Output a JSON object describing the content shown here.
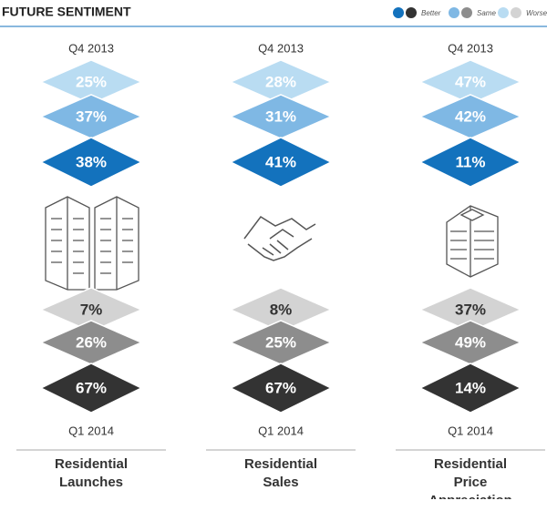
{
  "header": {
    "title": "FUTURE SENTIMENT"
  },
  "legend": {
    "items": [
      "Better",
      "Same",
      "Worse"
    ]
  },
  "panels": [
    {
      "label": "Residential Launches",
      "top_period": "Q4 2013",
      "top_values": [
        "25%",
        "37%",
        "38%"
      ],
      "bottom_period": "Q1 2014",
      "bottom_values": [
        "7%",
        "26%",
        "67%"
      ]
    },
    {
      "label": "Residential Sales",
      "top_period": "Q4 2013",
      "top_values": [
        "28%",
        "31%",
        "41%"
      ],
      "bottom_period": "Q1 2014",
      "bottom_values": [
        "8%",
        "25%",
        "67%"
      ]
    },
    {
      "label": "Residential Price Appreciation",
      "top_period": "Q4 2013",
      "top_values": [
        "47%",
        "42%",
        "11%"
      ],
      "bottom_period": "Q1 2014",
      "bottom_values": [
        "37%",
        "49%",
        "14%"
      ]
    }
  ]
}
